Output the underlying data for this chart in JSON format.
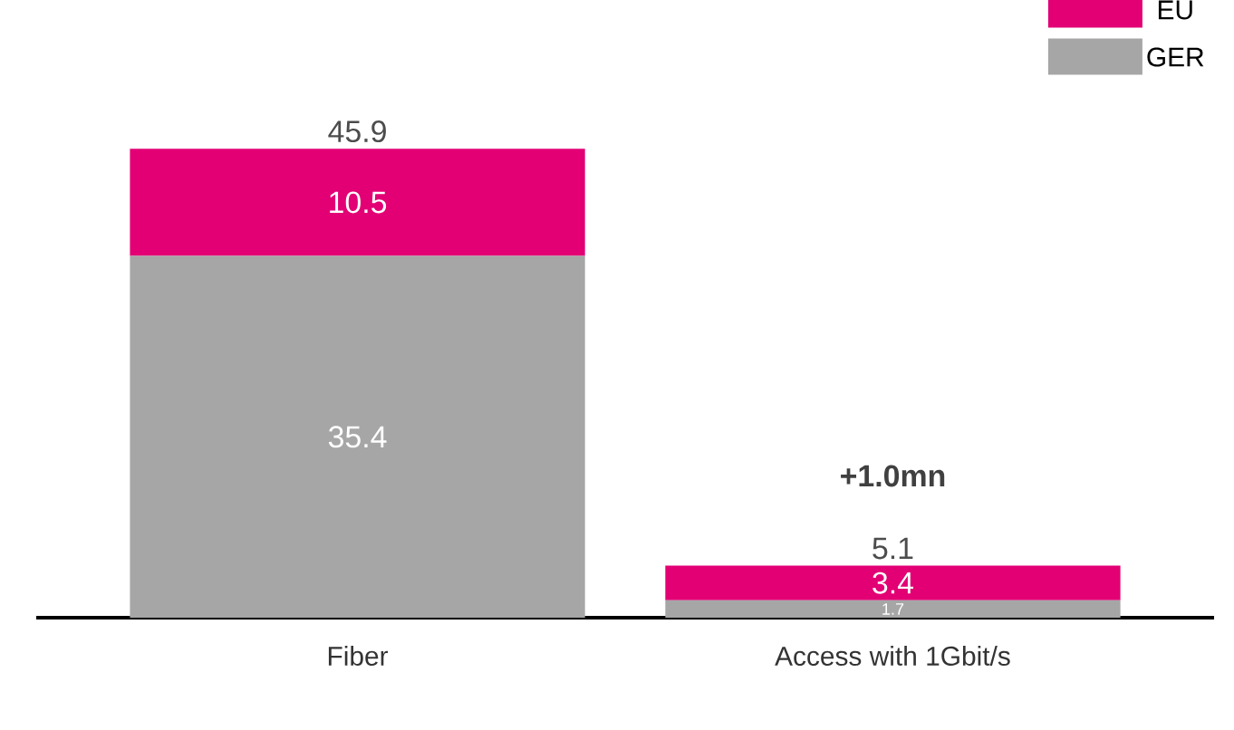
{
  "chart_data": {
    "type": "bar",
    "stacked": true,
    "categories": [
      "Fiber",
      "Access with 1Gbit/s"
    ],
    "series": [
      {
        "name": "GER",
        "color": "#a6a6a6",
        "values": [
          35.4,
          1.7
        ]
      },
      {
        "name": "EU",
        "color": "#e20074",
        "values": [
          10.5,
          3.4
        ]
      }
    ],
    "data_labels": true,
    "totals": [
      "45.9",
      "5.1"
    ],
    "annotations": [
      "+1.0mn"
    ],
    "legend": "top right"
  }
}
